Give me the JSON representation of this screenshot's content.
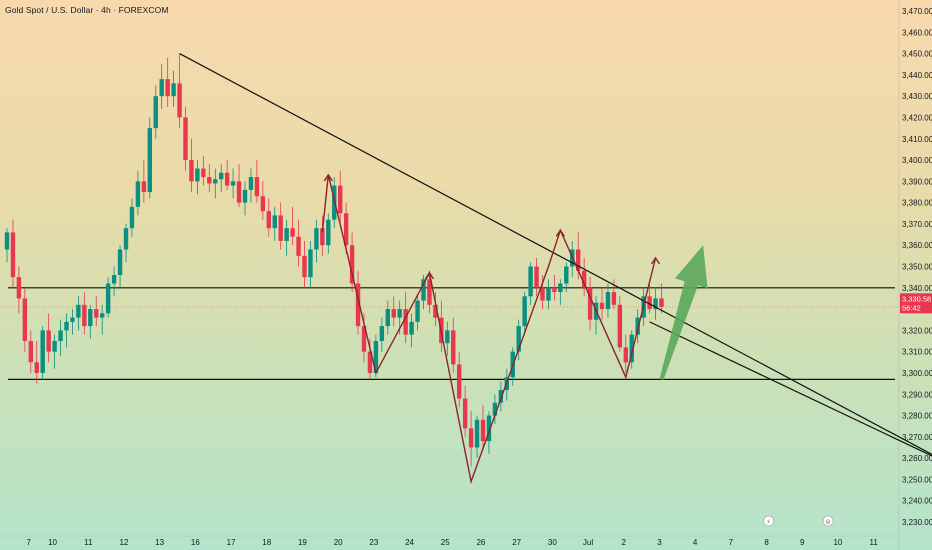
{
  "chart_title": "Gold Spot / U.S. Dollar · 4h · FOREXCOM",
  "colors": {
    "up_candle": "#0a8f80",
    "down_candle": "#e8384f",
    "trend_line": "#111111",
    "zigzag": "#8b2230",
    "arrow": "#5aa85c",
    "badge": "#e8384f"
  },
  "current_price": {
    "value": "3,330.58",
    "countdown": "56:42"
  },
  "event_icons": [
    {
      "name": "lightning-event-icon",
      "glyph": "⚡",
      "x_label": "8"
    },
    {
      "name": "flag-event-icon",
      "glyph": "⊜",
      "x_label": "10"
    }
  ],
  "chart_data": {
    "type": "candlestick",
    "title": "Gold Spot / U.S. Dollar · 4h · FOREXCOM",
    "y_tick_labels": [
      "3,470.00",
      "3,460.00",
      "3,450.00",
      "3,440.00",
      "3,430.00",
      "3,420.00",
      "3,410.00",
      "3,400.00",
      "3,390.00",
      "3,380.00",
      "3,370.00",
      "3,360.00",
      "3,350.00",
      "3,340.00",
      "3,330.00",
      "3,320.00",
      "3,310.00",
      "3,300.00",
      "3,290.00",
      "3,280.00",
      "3,270.00",
      "3,260.00",
      "3,250.00",
      "3,240.00",
      "3,230.00"
    ],
    "ylim": [
      3225,
      3472
    ],
    "x_tick_labels": [
      {
        "label": "7",
        "index": 1
      },
      {
        "label": "10",
        "index": 5
      },
      {
        "label": "11",
        "index": 11
      },
      {
        "label": "12",
        "index": 17
      },
      {
        "label": "13",
        "index": 23
      },
      {
        "label": "16",
        "index": 29
      },
      {
        "label": "17",
        "index": 35
      },
      {
        "label": "18",
        "index": 41
      },
      {
        "label": "19",
        "index": 47
      },
      {
        "label": "20",
        "index": 53
      },
      {
        "label": "23",
        "index": 59
      },
      {
        "label": "24",
        "index": 65
      },
      {
        "label": "25",
        "index": 71
      },
      {
        "label": "26",
        "index": 77
      },
      {
        "label": "27",
        "index": 83
      },
      {
        "label": "30",
        "index": 89
      },
      {
        "label": "Jul",
        "index": 95
      },
      {
        "label": "2",
        "index": 101
      },
      {
        "label": "3",
        "index": 107
      },
      {
        "label": "4",
        "index": 113
      },
      {
        "label": "7",
        "index": 119
      },
      {
        "label": "8",
        "index": 125
      },
      {
        "label": "9",
        "index": 131
      },
      {
        "label": "10",
        "index": 137
      },
      {
        "label": "11",
        "index": 143
      }
    ],
    "candles": [
      [
        3358,
        3368,
        3352,
        3366
      ],
      [
        3366,
        3372,
        3340,
        3345
      ],
      [
        3345,
        3350,
        3328,
        3335
      ],
      [
        3335,
        3340,
        3310,
        3315
      ],
      [
        3315,
        3320,
        3300,
        3305
      ],
      [
        3305,
        3315,
        3295,
        3300
      ],
      [
        3300,
        3322,
        3297,
        3320
      ],
      [
        3320,
        3328,
        3305,
        3310
      ],
      [
        3310,
        3318,
        3302,
        3315
      ],
      [
        3315,
        3325,
        3308,
        3320
      ],
      [
        3320,
        3328,
        3312,
        3324
      ],
      [
        3324,
        3330,
        3318,
        3326
      ],
      [
        3326,
        3336,
        3320,
        3332
      ],
      [
        3332,
        3338,
        3318,
        3322
      ],
      [
        3322,
        3332,
        3316,
        3330
      ],
      [
        3330,
        3336,
        3322,
        3326
      ],
      [
        3326,
        3332,
        3318,
        3328
      ],
      [
        3328,
        3345,
        3326,
        3342
      ],
      [
        3342,
        3350,
        3336,
        3346
      ],
      [
        3346,
        3360,
        3340,
        3358
      ],
      [
        3358,
        3370,
        3352,
        3368
      ],
      [
        3368,
        3382,
        3364,
        3378
      ],
      [
        3378,
        3395,
        3374,
        3390
      ],
      [
        3390,
        3400,
        3380,
        3385
      ],
      [
        3385,
        3420,
        3382,
        3415
      ],
      [
        3415,
        3435,
        3410,
        3430
      ],
      [
        3430,
        3445,
        3424,
        3438
      ],
      [
        3438,
        3448,
        3425,
        3430
      ],
      [
        3430,
        3442,
        3425,
        3436
      ],
      [
        3436,
        3450,
        3415,
        3420
      ],
      [
        3420,
        3425,
        3395,
        3400
      ],
      [
        3400,
        3410,
        3385,
        3390
      ],
      [
        3390,
        3400,
        3384,
        3396
      ],
      [
        3396,
        3402,
        3388,
        3392
      ],
      [
        3392,
        3398,
        3385,
        3389
      ],
      [
        3389,
        3396,
        3382,
        3391
      ],
      [
        3391,
        3398,
        3385,
        3394
      ],
      [
        3394,
        3400,
        3386,
        3388
      ],
      [
        3388,
        3396,
        3382,
        3390
      ],
      [
        3390,
        3398,
        3378,
        3380
      ],
      [
        3380,
        3390,
        3374,
        3386
      ],
      [
        3386,
        3396,
        3380,
        3392
      ],
      [
        3392,
        3400,
        3380,
        3383
      ],
      [
        3383,
        3390,
        3372,
        3376
      ],
      [
        3376,
        3382,
        3364,
        3368
      ],
      [
        3368,
        3378,
        3362,
        3374
      ],
      [
        3374,
        3380,
        3358,
        3362
      ],
      [
        3362,
        3372,
        3355,
        3368
      ],
      [
        3368,
        3378,
        3360,
        3364
      ],
      [
        3364,
        3372,
        3350,
        3355
      ],
      [
        3355,
        3362,
        3340,
        3345
      ],
      [
        3345,
        3362,
        3340,
        3358
      ],
      [
        3358,
        3372,
        3352,
        3368
      ],
      [
        3368,
        3374,
        3355,
        3360
      ],
      [
        3360,
        3375,
        3356,
        3372
      ],
      [
        3372,
        3392,
        3368,
        3388
      ],
      [
        3388,
        3395,
        3370,
        3375
      ],
      [
        3375,
        3380,
        3356,
        3360
      ],
      [
        3360,
        3366,
        3338,
        3342
      ],
      [
        3342,
        3348,
        3318,
        3322
      ],
      [
        3322,
        3328,
        3305,
        3310
      ],
      [
        3310,
        3316,
        3297,
        3300
      ],
      [
        3300,
        3318,
        3298,
        3315
      ],
      [
        3315,
        3326,
        3310,
        3322
      ],
      [
        3322,
        3334,
        3318,
        3330
      ],
      [
        3330,
        3336,
        3322,
        3326
      ],
      [
        3326,
        3334,
        3318,
        3330
      ],
      [
        3330,
        3338,
        3314,
        3318
      ],
      [
        3318,
        3328,
        3312,
        3324
      ],
      [
        3324,
        3336,
        3320,
        3334
      ],
      [
        3334,
        3346,
        3330,
        3344
      ],
      [
        3344,
        3348,
        3328,
        3332
      ],
      [
        3332,
        3338,
        3322,
        3326
      ],
      [
        3326,
        3334,
        3310,
        3314
      ],
      [
        3314,
        3324,
        3308,
        3320
      ],
      [
        3320,
        3326,
        3300,
        3304
      ],
      [
        3304,
        3310,
        3284,
        3288
      ],
      [
        3288,
        3294,
        3270,
        3274
      ],
      [
        3274,
        3282,
        3256,
        3265
      ],
      [
        3265,
        3280,
        3260,
        3278
      ],
      [
        3278,
        3285,
        3264,
        3268
      ],
      [
        3268,
        3282,
        3262,
        3280
      ],
      [
        3280,
        3290,
        3276,
        3286
      ],
      [
        3286,
        3296,
        3282,
        3292
      ],
      [
        3292,
        3302,
        3287,
        3298
      ],
      [
        3298,
        3312,
        3294,
        3310
      ],
      [
        3310,
        3325,
        3306,
        3322
      ],
      [
        3322,
        3338,
        3318,
        3336
      ],
      [
        3336,
        3352,
        3332,
        3350
      ],
      [
        3350,
        3354,
        3336,
        3340
      ],
      [
        3340,
        3346,
        3330,
        3334
      ],
      [
        3334,
        3344,
        3330,
        3340
      ],
      [
        3340,
        3346,
        3334,
        3338
      ],
      [
        3338,
        3344,
        3332,
        3342
      ],
      [
        3342,
        3352,
        3338,
        3350
      ],
      [
        3350,
        3362,
        3345,
        3358
      ],
      [
        3358,
        3366,
        3344,
        3348
      ],
      [
        3348,
        3354,
        3336,
        3340
      ],
      [
        3340,
        3345,
        3320,
        3325
      ],
      [
        3325,
        3336,
        3318,
        3333
      ],
      [
        3333,
        3340,
        3325,
        3330
      ],
      [
        3330,
        3342,
        3326,
        3338
      ],
      [
        3338,
        3344,
        3330,
        3332
      ],
      [
        3332,
        3336,
        3310,
        3312
      ],
      [
        3312,
        3318,
        3300,
        3305
      ],
      [
        3305,
        3320,
        3302,
        3318
      ],
      [
        3318,
        3330,
        3314,
        3326
      ],
      [
        3326,
        3340,
        3322,
        3336
      ],
      [
        3336,
        3344,
        3328,
        3330
      ],
      [
        3330,
        3340,
        3325,
        3335
      ],
      [
        3335,
        3342,
        3328,
        3331
      ]
    ],
    "annotations": {
      "horizontal_levels": [
        3340,
        3297
      ],
      "trend_lines": [
        {
          "from": [
            29,
            3450
          ],
          "to": [
            160,
            3255
          ]
        },
        {
          "from": [
            108,
            3324
          ],
          "to": [
            160,
            3255
          ]
        }
      ],
      "zigzag_path": [
        [
          53,
          3366
        ],
        [
          54,
          3393
        ],
        [
          62,
          3300
        ],
        [
          71,
          3347
        ],
        [
          78,
          3249
        ],
        [
          91,
          3350
        ],
        [
          93,
          3367
        ],
        [
          104,
          3298
        ],
        [
          109,
          3354
        ]
      ],
      "arrow_from": [
        110,
        3297
      ],
      "arrow_to": [
        117,
        3360
      ]
    }
  }
}
